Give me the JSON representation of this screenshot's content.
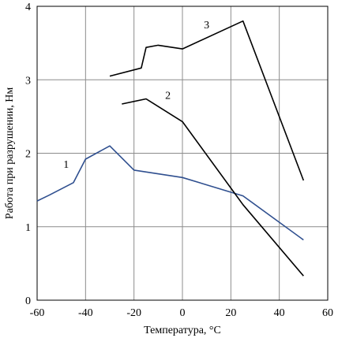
{
  "chart_data": {
    "type": "line",
    "title": "",
    "xlabel": "Температура, °C",
    "ylabel": "Работа при разрушении, Нм",
    "xlim": [
      -60,
      60
    ],
    "ylim": [
      0,
      4
    ],
    "xticks": [
      -60,
      -40,
      -20,
      0,
      20,
      40,
      60
    ],
    "yticks": [
      0,
      1,
      2,
      3,
      4
    ],
    "grid": true,
    "series": [
      {
        "name": "1",
        "color": "#2f4f8f",
        "x": [
          -60,
          -55,
          -45,
          -40,
          -30,
          -20,
          0,
          25,
          50
        ],
        "y": [
          1.35,
          1.43,
          1.6,
          1.92,
          2.1,
          1.77,
          1.67,
          1.42,
          0.82
        ]
      },
      {
        "name": "2",
        "color": "#000000",
        "x": [
          -25,
          -15,
          0,
          25,
          50
        ],
        "y": [
          2.67,
          2.74,
          2.43,
          1.3,
          0.33
        ]
      },
      {
        "name": "3",
        "color": "#000000",
        "x": [
          -30,
          -17,
          -15,
          -10,
          0,
          25,
          50
        ],
        "y": [
          3.05,
          3.16,
          3.44,
          3.47,
          3.42,
          3.8,
          1.63
        ]
      }
    ],
    "series_labels": [
      {
        "text": "1",
        "x": -48,
        "y": 1.8
      },
      {
        "text": "2",
        "x": -6,
        "y": 2.74
      },
      {
        "text": "3",
        "x": 10,
        "y": 3.7
      }
    ]
  }
}
